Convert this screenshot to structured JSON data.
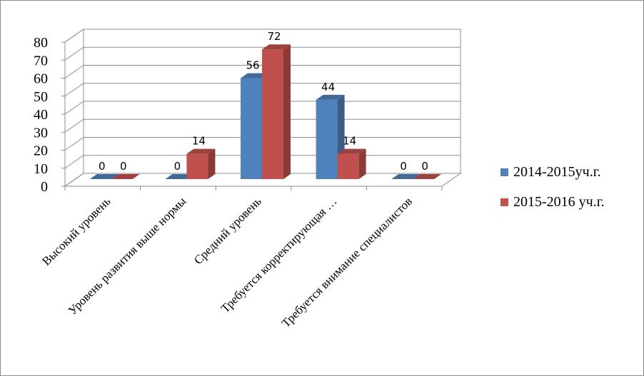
{
  "chart_data": {
    "type": "bar",
    "style": "3d-clustered-column",
    "categories": [
      "Высокий уровень",
      "Уровень развития выше нормы",
      "Средний уровень",
      "Требуется  корректирующая …",
      "Требуется  внимание специалистов"
    ],
    "series": [
      {
        "name": "2014-2015уч.г.",
        "values": [
          0,
          0,
          56,
          44,
          0
        ],
        "color": "#4f81bd"
      },
      {
        "name": "2015-2016  уч.г.",
        "values": [
          0,
          14,
          72,
          14,
          0
        ],
        "color": "#c0504d"
      }
    ],
    "ylim": [
      0,
      80
    ],
    "yticks": [
      0,
      10,
      20,
      30,
      40,
      50,
      60,
      70,
      80
    ],
    "grid": true,
    "data_labels": true,
    "legend_position": "right"
  }
}
